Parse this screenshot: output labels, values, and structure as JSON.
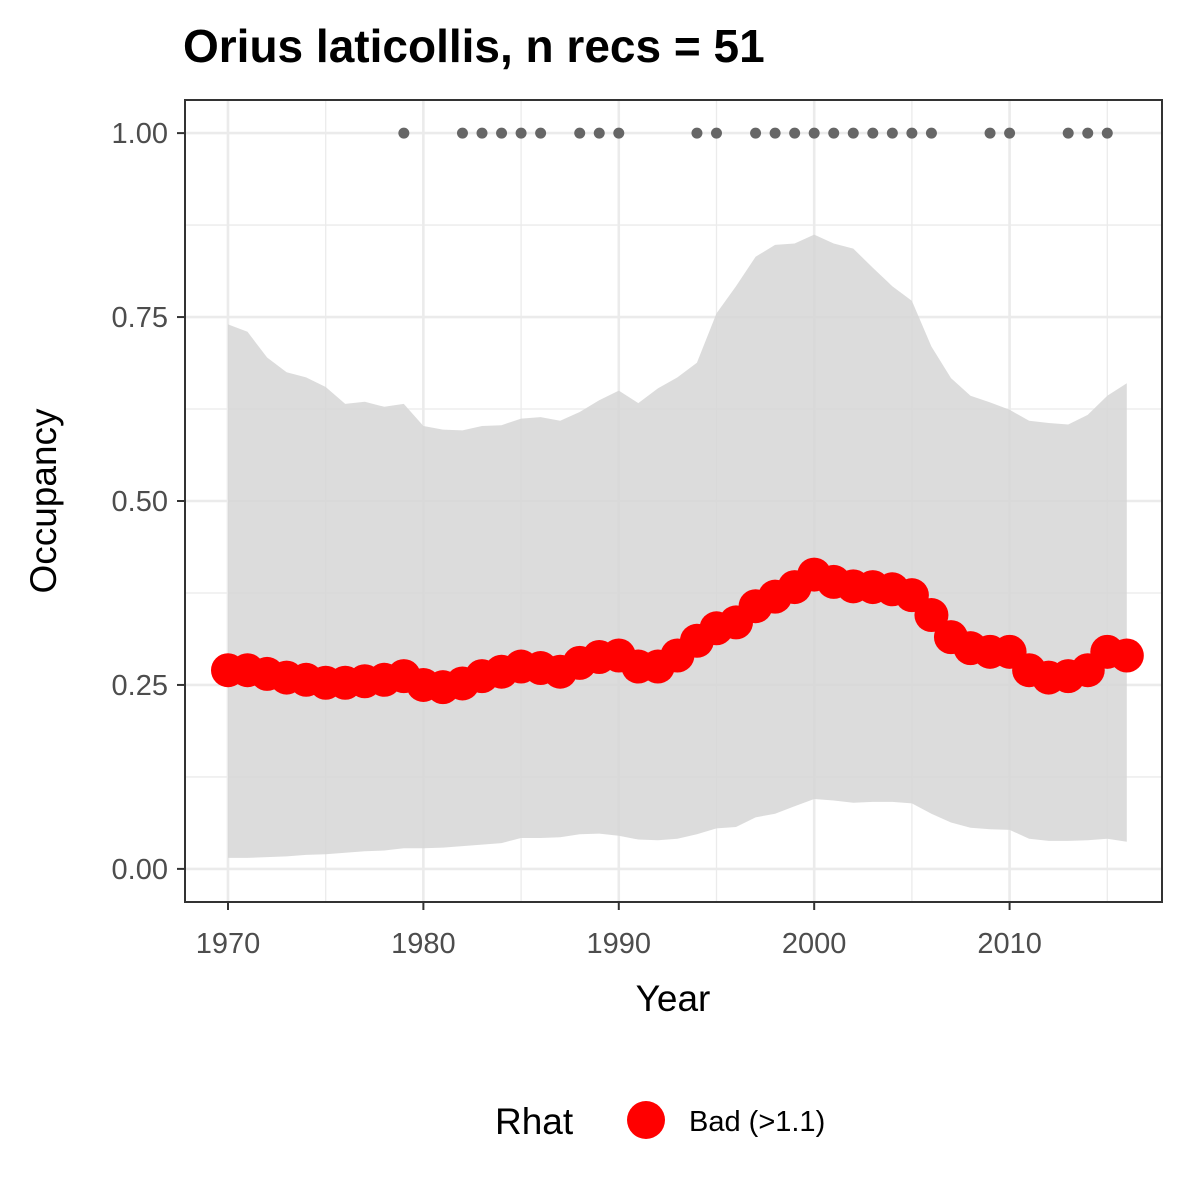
{
  "chart_data": {
    "type": "line",
    "title": "Orius laticollis, n recs = 51",
    "xlabel": "Year",
    "ylabel": "Occupancy",
    "xlim": [
      1967.8,
      2017.8
    ],
    "ylim": [
      -0.045,
      1.045
    ],
    "x_ticks": [
      1970,
      1980,
      1990,
      2000,
      2010
    ],
    "x_tick_labels": [
      "1970",
      "1980",
      "1990",
      "2000",
      "2010"
    ],
    "y_ticks": [
      0,
      0.25,
      0.5,
      0.75,
      1.0
    ],
    "y_tick_labels": [
      "0.00",
      "0.25",
      "0.50",
      "0.75",
      "1.00"
    ],
    "grid": true,
    "colors": {
      "series": "#ff0000",
      "ribbon": "#d6d6d6",
      "records": "#666666",
      "grid": "#ebebeb",
      "panel_border": "#333333"
    },
    "series": [
      {
        "x": [
          1970,
          1971,
          1972,
          1973,
          1974,
          1975,
          1976,
          1977,
          1978,
          1979,
          1980,
          1981,
          1982,
          1983,
          1984,
          1985,
          1986,
          1987,
          1988,
          1989,
          1990,
          1991,
          1992,
          1993,
          1994,
          1995,
          1996,
          1997,
          1998,
          1999,
          2000,
          2001,
          2002,
          2003,
          2004,
          2005,
          2006,
          2007,
          2008,
          2009,
          2010,
          2011,
          2012,
          2013,
          2014,
          2015,
          2016
        ],
        "y": [
          0.27,
          0.27,
          0.265,
          0.26,
          0.257,
          0.253,
          0.253,
          0.255,
          0.257,
          0.262,
          0.25,
          0.247,
          0.252,
          0.262,
          0.268,
          0.275,
          0.273,
          0.268,
          0.28,
          0.288,
          0.29,
          0.275,
          0.275,
          0.29,
          0.31,
          0.327,
          0.335,
          0.357,
          0.37,
          0.383,
          0.4,
          0.39,
          0.384,
          0.383,
          0.38,
          0.372,
          0.345,
          0.315,
          0.3,
          0.295,
          0.295,
          0.27,
          0.26,
          0.262,
          0.27,
          0.295,
          0.29
        ],
        "upper": [
          0.74,
          0.73,
          0.695,
          0.675,
          0.668,
          0.655,
          0.632,
          0.635,
          0.628,
          0.632,
          0.602,
          0.597,
          0.596,
          0.602,
          0.603,
          0.612,
          0.614,
          0.609,
          0.621,
          0.637,
          0.65,
          0.633,
          0.653,
          0.668,
          0.688,
          0.755,
          0.792,
          0.832,
          0.848,
          0.85,
          0.862,
          0.85,
          0.843,
          0.817,
          0.792,
          0.772,
          0.71,
          0.667,
          0.643,
          0.634,
          0.624,
          0.609,
          0.606,
          0.604,
          0.617,
          0.643,
          0.66
        ],
        "lower": [
          0.015,
          0.015,
          0.016,
          0.017,
          0.019,
          0.02,
          0.022,
          0.024,
          0.025,
          0.028,
          0.028,
          0.029,
          0.031,
          0.033,
          0.035,
          0.042,
          0.042,
          0.043,
          0.047,
          0.048,
          0.045,
          0.04,
          0.039,
          0.041,
          0.047,
          0.055,
          0.057,
          0.07,
          0.075,
          0.085,
          0.095,
          0.093,
          0.09,
          0.091,
          0.091,
          0.089,
          0.075,
          0.063,
          0.056,
          0.054,
          0.053,
          0.041,
          0.038,
          0.038,
          0.039,
          0.041,
          0.037
        ]
      }
    ],
    "records": {
      "x": [
        1979,
        1982,
        1983,
        1984,
        1985,
        1986,
        1988,
        1989,
        1990,
        1994,
        1995,
        1997,
        1998,
        1999,
        2000,
        2001,
        2002,
        2003,
        2004,
        2005,
        2006,
        2009,
        2010,
        2013,
        2014,
        2015
      ],
      "y": 1.0
    },
    "legend": {
      "title": "Rhat",
      "entries": [
        {
          "label": "Bad (>1.1)",
          "color": "#ff0000"
        }
      ],
      "placement": "bottom"
    }
  }
}
